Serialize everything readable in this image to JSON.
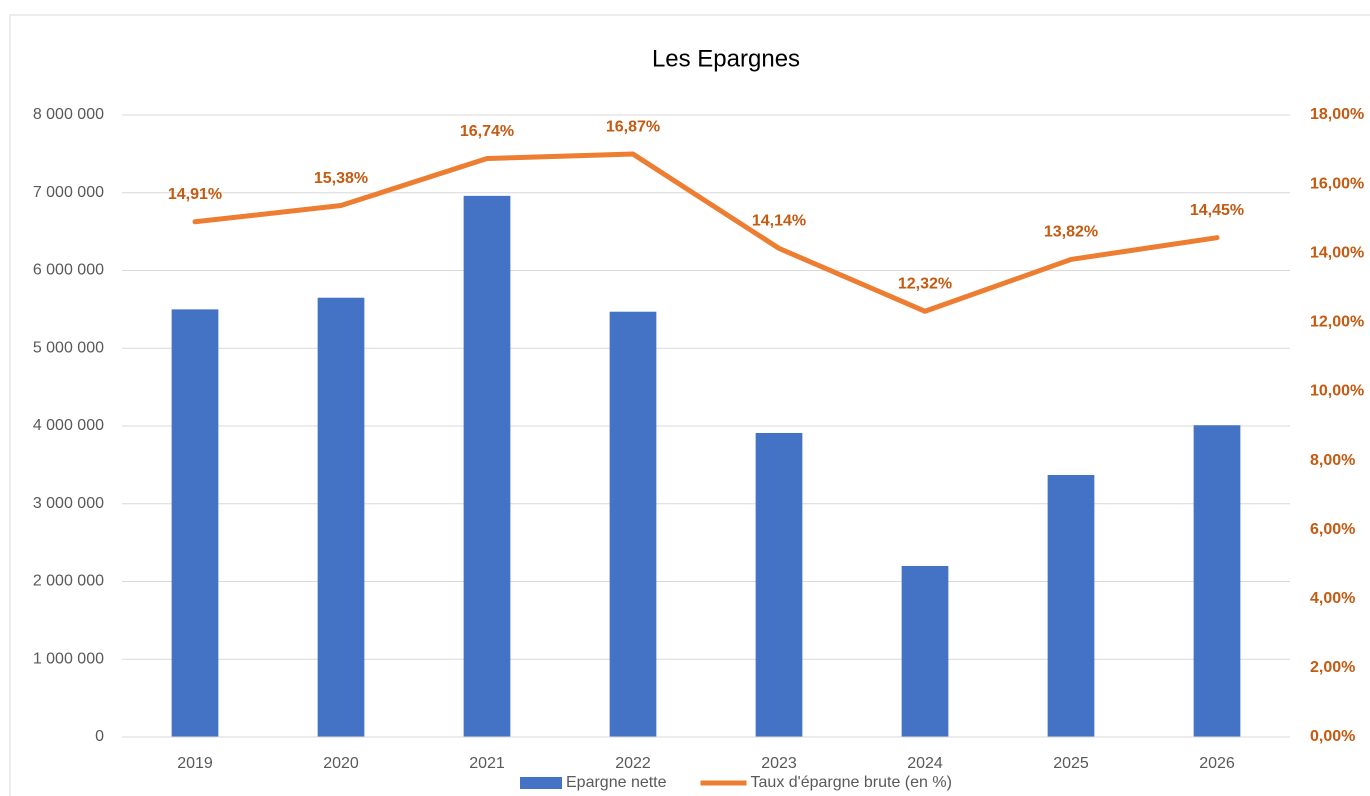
{
  "chart_data": {
    "type": "bar",
    "title": "Les Epargnes",
    "categories": [
      "2019",
      "2020",
      "2021",
      "2022",
      "2023",
      "2024",
      "2025",
      "2026"
    ],
    "series": [
      {
        "name": "Epargne nette",
        "color": "#4472c4",
        "type": "bar",
        "values": [
          5500000,
          5650000,
          6960000,
          5470000,
          3910000,
          2200000,
          3370000,
          4010000
        ]
      },
      {
        "name": "Taux d'épargne brute (en %)",
        "color": "#ed7d31",
        "type": "line",
        "axis": "y2",
        "values": [
          14.91,
          15.38,
          16.74,
          16.87,
          14.14,
          12.32,
          13.82,
          14.45
        ],
        "value_labels": [
          "14,91%",
          "15,38%",
          "16,74%",
          "16,87%",
          "14,14%",
          "12,32%",
          "13,82%",
          "14,45%"
        ]
      }
    ],
    "ylim": [
      0,
      8000000
    ],
    "yticks": [
      0,
      {
        "value": 1000000,
        "label": "1 000 000"
      },
      {
        "value": 2000000,
        "label": "2 000 000"
      },
      {
        "value": 3000000,
        "label": "3 000 000"
      },
      {
        "value": 4000000,
        "label": "4 000 000"
      },
      {
        "value": 5000000,
        "label": "5 000 000"
      },
      {
        "value": 6000000,
        "label": "6 000 000"
      },
      {
        "value": 7000000,
        "label": "7 000 000"
      },
      {
        "value": 8000000,
        "label": "8 000 000"
      }
    ],
    "y2lim": [
      0,
      18
    ],
    "y2ticks": [
      {
        "value": 0,
        "label": "0,00%"
      },
      {
        "value": 2,
        "label": "2,00%"
      },
      {
        "value": 4,
        "label": "4,00%"
      },
      {
        "value": 6,
        "label": "6,00%"
      },
      {
        "value": 8,
        "label": "8,00%"
      },
      {
        "value": 10,
        "label": "10,00%"
      },
      {
        "value": 12,
        "label": "12,00%"
      },
      {
        "value": 14,
        "label": "14,00%"
      },
      {
        "value": 16,
        "label": "16,00%"
      },
      {
        "value": 18,
        "label": "18,00%"
      }
    ],
    "grid": true,
    "legend": "bottom"
  }
}
